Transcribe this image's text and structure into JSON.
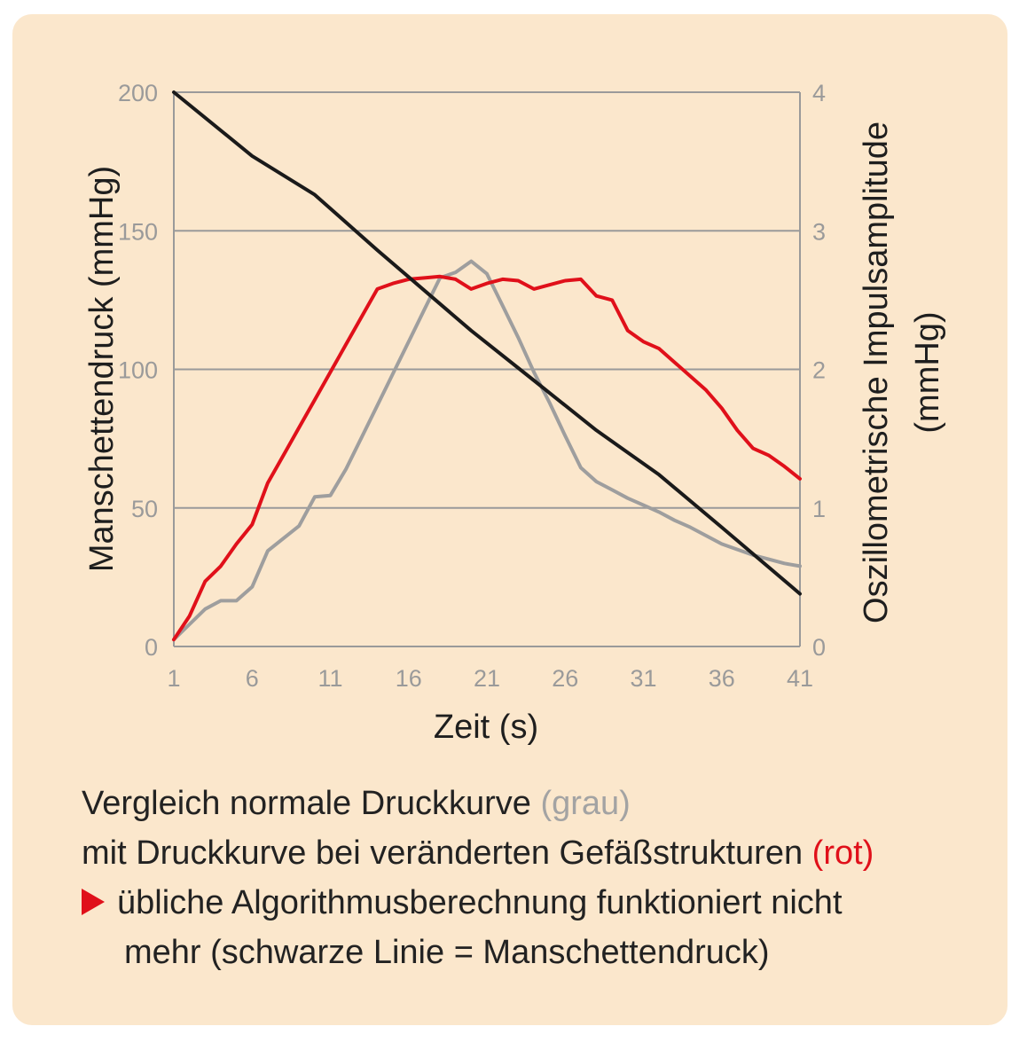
{
  "colors": {
    "background": "#fbe7cc",
    "grid": "#9a9a9a",
    "black_line": "#1a1a1a",
    "red_line": "#e0101a",
    "grey_line": "#9e9e9e"
  },
  "chart_data": {
    "type": "line",
    "xlabel": "Zeit (s)",
    "ylabel_left": "Manschettendruck (mmHg)",
    "ylabel_right_line1": "Oszillometrische Impulsamplitude",
    "ylabel_right_line2": "(mmHg)",
    "x_ticks": [
      "1",
      "6",
      "11",
      "16",
      "21",
      "26",
      "31",
      "36",
      "41"
    ],
    "xlim": [
      1,
      41
    ],
    "y_left_ticks": [
      "0",
      "50",
      "100",
      "150",
      "200"
    ],
    "ylim_left": [
      0,
      200
    ],
    "y_right_ticks": [
      "0",
      "1",
      "2",
      "3",
      "4"
    ],
    "ylim_right": [
      0,
      4
    ],
    "grid": "horizontal",
    "series": [
      {
        "axis": "left",
        "color_key": "black_line",
        "points": [
          [
            1,
            200
          ],
          [
            6,
            177
          ],
          [
            10,
            163
          ],
          [
            14,
            143
          ],
          [
            20,
            114
          ],
          [
            24,
            96
          ],
          [
            28,
            78
          ],
          [
            32,
            62
          ],
          [
            36,
            43
          ],
          [
            41,
            19
          ]
        ]
      },
      {
        "axis": "right",
        "color_key": "red_line",
        "points": [
          [
            1,
            0.05
          ],
          [
            2,
            0.22
          ],
          [
            3,
            0.47
          ],
          [
            4,
            0.58
          ],
          [
            5,
            0.74
          ],
          [
            6,
            0.88
          ],
          [
            7,
            1.18
          ],
          [
            8,
            1.38
          ],
          [
            9,
            1.58
          ],
          [
            10,
            1.78
          ],
          [
            11,
            1.98
          ],
          [
            12,
            2.18
          ],
          [
            13,
            2.38
          ],
          [
            14,
            2.58
          ],
          [
            15,
            2.62
          ],
          [
            16,
            2.65
          ],
          [
            17,
            2.66
          ],
          [
            18,
            2.67
          ],
          [
            19,
            2.65
          ],
          [
            20,
            2.58
          ],
          [
            21,
            2.62
          ],
          [
            22,
            2.65
          ],
          [
            23,
            2.64
          ],
          [
            24,
            2.58
          ],
          [
            25,
            2.61
          ],
          [
            26,
            2.64
          ],
          [
            27,
            2.65
          ],
          [
            28,
            2.53
          ],
          [
            29,
            2.5
          ],
          [
            30,
            2.28
          ],
          [
            31,
            2.2
          ],
          [
            32,
            2.15
          ],
          [
            33,
            2.05
          ],
          [
            34,
            1.95
          ],
          [
            35,
            1.85
          ],
          [
            36,
            1.72
          ],
          [
            37,
            1.56
          ],
          [
            38,
            1.43
          ],
          [
            39,
            1.38
          ],
          [
            40,
            1.3
          ],
          [
            41,
            1.21
          ]
        ]
      },
      {
        "axis": "right",
        "color_key": "grey_line",
        "points": [
          [
            1,
            0.05
          ],
          [
            2,
            0.16
          ],
          [
            3,
            0.27
          ],
          [
            4,
            0.33
          ],
          [
            5,
            0.33
          ],
          [
            6,
            0.43
          ],
          [
            7,
            0.69
          ],
          [
            8,
            0.78
          ],
          [
            9,
            0.87
          ],
          [
            10,
            1.08
          ],
          [
            11,
            1.09
          ],
          [
            12,
            1.28
          ],
          [
            13,
            1.51
          ],
          [
            14,
            1.74
          ],
          [
            15,
            1.97
          ],
          [
            16,
            2.2
          ],
          [
            17,
            2.43
          ],
          [
            18,
            2.66
          ],
          [
            19,
            2.7
          ],
          [
            20,
            2.78
          ],
          [
            21,
            2.69
          ],
          [
            22,
            2.46
          ],
          [
            23,
            2.23
          ],
          [
            24,
            1.98
          ],
          [
            25,
            1.76
          ],
          [
            26,
            1.52
          ],
          [
            27,
            1.29
          ],
          [
            28,
            1.19
          ],
          [
            29,
            1.13
          ],
          [
            30,
            1.07
          ],
          [
            31,
            1.02
          ],
          [
            32,
            0.97
          ],
          [
            33,
            0.91
          ],
          [
            34,
            0.86
          ],
          [
            35,
            0.8
          ],
          [
            36,
            0.74
          ],
          [
            37,
            0.7
          ],
          [
            38,
            0.66
          ],
          [
            39,
            0.63
          ],
          [
            40,
            0.6
          ],
          [
            41,
            0.58
          ]
        ]
      }
    ]
  },
  "caption": {
    "line1_text": "Vergleich normale Druckkurve ",
    "line1_highlight": "(grau)",
    "line1_highlight_color": "#a3a3a3",
    "line2_text": "mit Druckkurve bei veränderten Gefäßstrukturen ",
    "line2_highlight": "(rot)",
    "line2_highlight_color": "#e0101a",
    "bullet_icon": "red-triangle-bullet-icon",
    "bullet_color": "#e0101a",
    "line3_text": "übliche Algorithmusberechnung funktioniert nicht",
    "line4_text": "mehr (schwarze Linie = Manschettendruck)"
  }
}
